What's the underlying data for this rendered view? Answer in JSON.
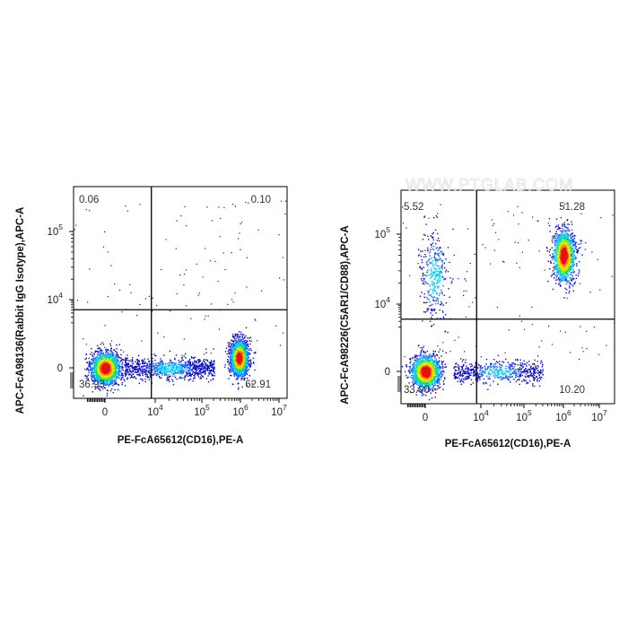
{
  "watermark": "WWW.PTGLAB.COM",
  "colors": {
    "density": [
      "#0a0ac8",
      "#1e64ff",
      "#00c8ff",
      "#00e08c",
      "#a0f000",
      "#ffe000",
      "#ff8000",
      "#e81010"
    ],
    "gate_line": "#000000",
    "axis": "#000000"
  },
  "chart_data": [
    {
      "type": "scatter",
      "title": "",
      "xlabel": "PE-FcA65612(CD16),PE-A",
      "ylabel": "APC-FcA98136(Rabbit IgG Isotype),APC-A",
      "x_scale": "biexponential",
      "y_scale": "biexponential",
      "x_ticks": [
        {
          "value": 0,
          "label": "0"
        },
        {
          "value": 10000,
          "label": "10",
          "exp": "4"
        },
        {
          "value": 100000,
          "label": "10",
          "exp": "5"
        },
        {
          "value": 1000000,
          "label": "10",
          "exp": "6"
        },
        {
          "value": 10000000,
          "label": "10",
          "exp": "7"
        }
      ],
      "y_ticks": [
        {
          "value": 0,
          "label": "0"
        },
        {
          "value": 10000,
          "label": "10",
          "exp": "4"
        },
        {
          "value": 100000,
          "label": "10",
          "exp": "5"
        }
      ],
      "gate": {
        "x": 7000,
        "y": 5000
      },
      "quadrants": [
        {
          "position": "top-left",
          "value": "0.06"
        },
        {
          "position": "top-right",
          "value": "0.10"
        },
        {
          "position": "bottom-left",
          "value": "36.93"
        },
        {
          "position": "bottom-right",
          "value": "62.91"
        }
      ],
      "populations": [
        {
          "x": 0,
          "y": 0,
          "count": 1900
        },
        {
          "x": 900000,
          "y": 100,
          "count": 1800
        },
        {
          "x": 20000,
          "y": 0,
          "count": 900,
          "spread": "horizontal"
        }
      ],
      "grid": false
    },
    {
      "type": "scatter",
      "title": "",
      "xlabel": "PE-FcA65612(CD16),PE-A",
      "ylabel": "APC-FcA98226(C5AR1/CD88),APC-A",
      "x_scale": "biexponential",
      "y_scale": "biexponential",
      "x_ticks": [
        {
          "value": 0,
          "label": "0"
        },
        {
          "value": 10000,
          "label": "10",
          "exp": "4"
        },
        {
          "value": 100000,
          "label": "10",
          "exp": "5"
        },
        {
          "value": 1000000,
          "label": "10",
          "exp": "6"
        },
        {
          "value": 10000000,
          "label": "10",
          "exp": "7"
        }
      ],
      "y_ticks": [
        {
          "value": 0,
          "label": "0"
        },
        {
          "value": 10000,
          "label": "10",
          "exp": "4"
        },
        {
          "value": 100000,
          "label": "10",
          "exp": "5"
        }
      ],
      "gate": {
        "x": 7000,
        "y": 3500
      },
      "quadrants": [
        {
          "position": "top-left",
          "value": "5.52"
        },
        {
          "position": "top-right",
          "value": "51.28"
        },
        {
          "position": "bottom-left",
          "value": "33.00"
        },
        {
          "position": "bottom-right",
          "value": "10.20"
        }
      ],
      "populations": [
        {
          "x": 0,
          "y": 0,
          "count": 1600
        },
        {
          "x": 1000000,
          "y": 50000,
          "count": 1500
        },
        {
          "x": 100,
          "y": 25000,
          "count": 350,
          "spread": "vertical"
        },
        {
          "x": 25000,
          "y": 0,
          "count": 600,
          "spread": "horizontal"
        }
      ],
      "grid": false
    }
  ]
}
